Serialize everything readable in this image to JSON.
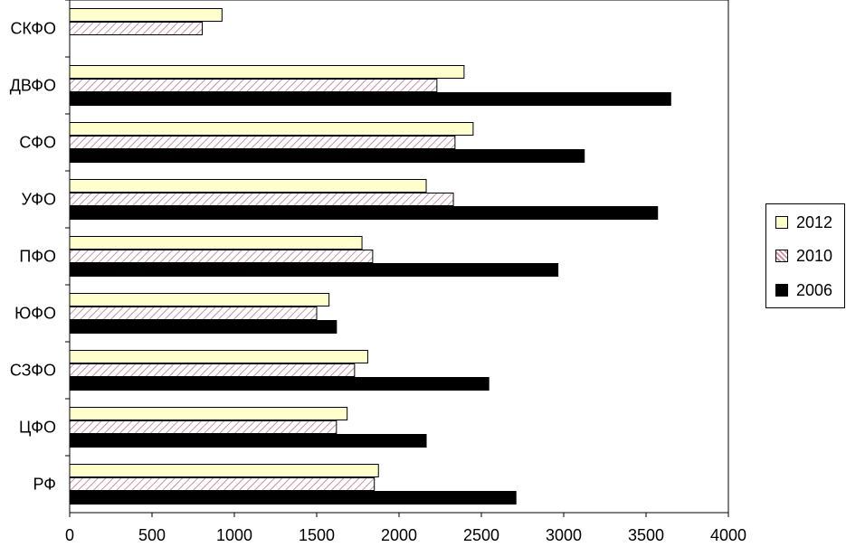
{
  "chart_data": {
    "type": "bar",
    "orientation": "horizontal",
    "categories": [
      "РФ",
      "ЦФО",
      "СЗФО",
      "ЮФО",
      "ПФО",
      "УФО",
      "СФО",
      "ДВФО",
      "СКФО"
    ],
    "series": [
      {
        "name": "2012",
        "values": [
          1875,
          1685,
          1810,
          1575,
          1775,
          2165,
          2450,
          2395,
          925
        ],
        "color": "#ffffcc",
        "pattern": "solid-light"
      },
      {
        "name": "2010",
        "values": [
          1850,
          1620,
          1730,
          1500,
          1840,
          2330,
          2340,
          2230,
          805
        ],
        "color": "#ffffff",
        "pattern": "pink-diagonal-hatch"
      },
      {
        "name": "2006",
        "values": [
          2710,
          2165,
          2545,
          1620,
          2965,
          3570,
          3125,
          3650,
          null
        ],
        "color": "#000000",
        "pattern": "solid-dark"
      }
    ],
    "xlim": [
      0,
      4000
    ],
    "xticks": [
      "0",
      "500",
      "1000",
      "1500",
      "2000",
      "2500",
      "3000",
      "3500",
      "4000"
    ],
    "title": "",
    "xlabel": "",
    "ylabel": "",
    "grid": false,
    "legend_position": "right"
  },
  "legend": {
    "items": [
      {
        "label": "2012",
        "series_index": 0
      },
      {
        "label": "2010",
        "series_index": 1
      },
      {
        "label": "2006",
        "series_index": 2
      }
    ]
  }
}
